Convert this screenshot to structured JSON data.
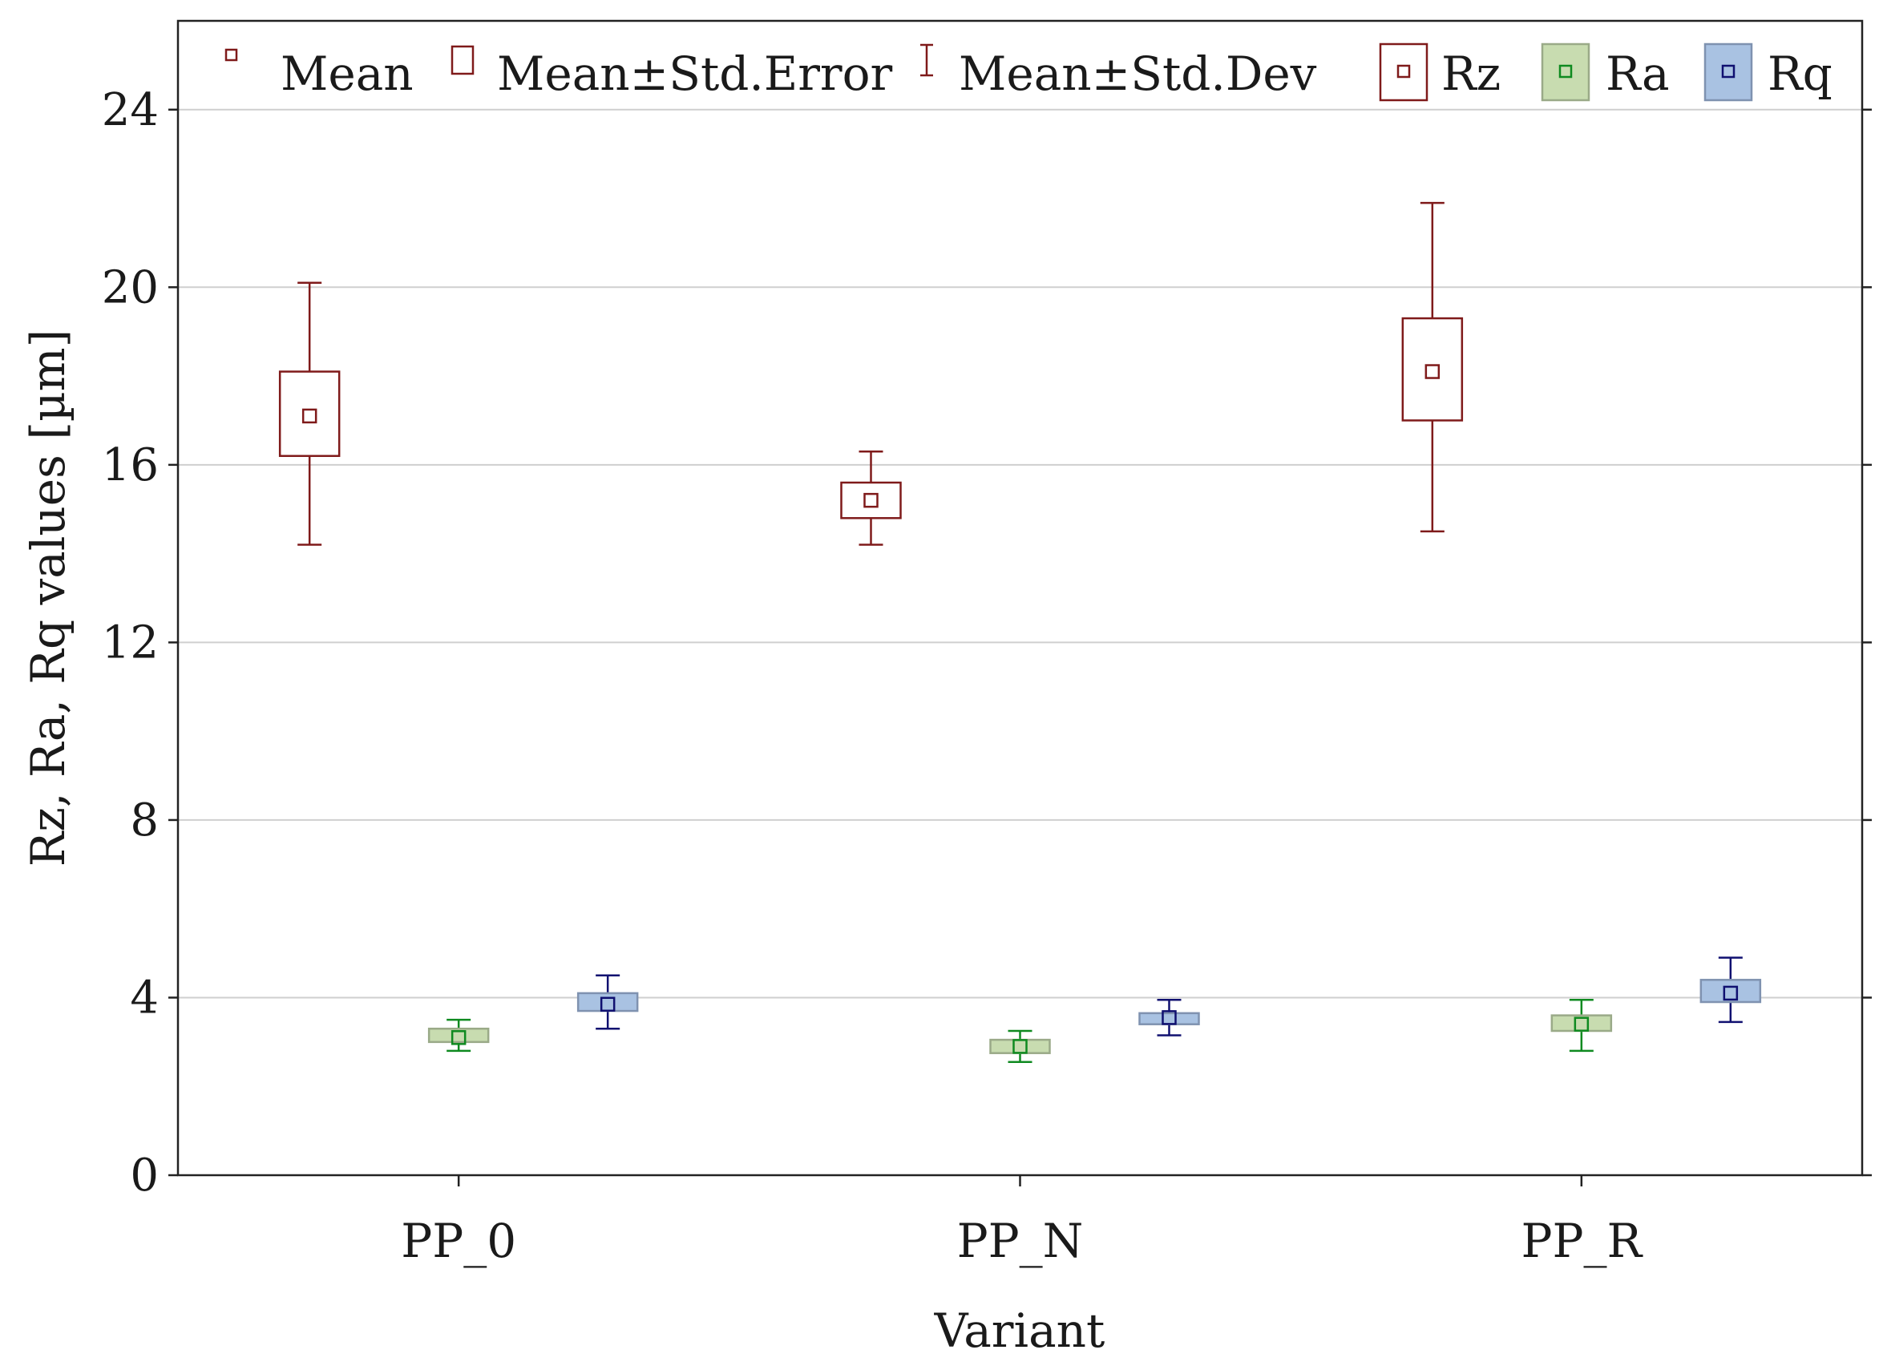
{
  "chart_data": {
    "type": "box-errorbar",
    "xlabel": "Variant",
    "ylabel": "Rz, Ra, Rq values [µm]",
    "categories": [
      "PP_0",
      "PP_N",
      "PP_R"
    ],
    "ylim": [
      0,
      26
    ],
    "yticks": [
      0,
      4,
      8,
      12,
      16,
      20,
      24
    ],
    "grid": true,
    "legend_position": "top",
    "legend": {
      "mean": "Mean",
      "mean_std_error": "Mean±Std.Error",
      "mean_std_dev": "Mean±Std.Dev"
    },
    "series": [
      {
        "name": "Rz",
        "color": "#7f1a1a",
        "fill": "#ffffff",
        "mean": [
          17.1,
          15.2,
          18.1
        ],
        "se_low": [
          16.2,
          14.8,
          17.0
        ],
        "se_high": [
          18.1,
          15.6,
          19.3
        ],
        "sd_low": [
          14.2,
          14.2,
          14.5
        ],
        "sd_high": [
          20.1,
          16.3,
          21.9
        ]
      },
      {
        "name": "Ra",
        "color": "#0f8a20",
        "fill": "#c8dcb0",
        "mean": [
          3.1,
          2.9,
          3.4
        ],
        "se_low": [
          3.0,
          2.75,
          3.25
        ],
        "se_high": [
          3.3,
          3.05,
          3.6
        ],
        "sd_low": [
          2.8,
          2.55,
          2.8
        ],
        "sd_high": [
          3.5,
          3.25,
          3.95
        ]
      },
      {
        "name": "Rq",
        "color": "#101070",
        "fill": "#a9c2e2",
        "mean": [
          3.85,
          3.55,
          4.1
        ],
        "se_low": [
          3.7,
          3.4,
          3.9
        ],
        "se_high": [
          4.1,
          3.65,
          4.4
        ],
        "sd_low": [
          3.3,
          3.15,
          3.45
        ],
        "sd_high": [
          4.5,
          3.95,
          4.9
        ]
      }
    ]
  }
}
